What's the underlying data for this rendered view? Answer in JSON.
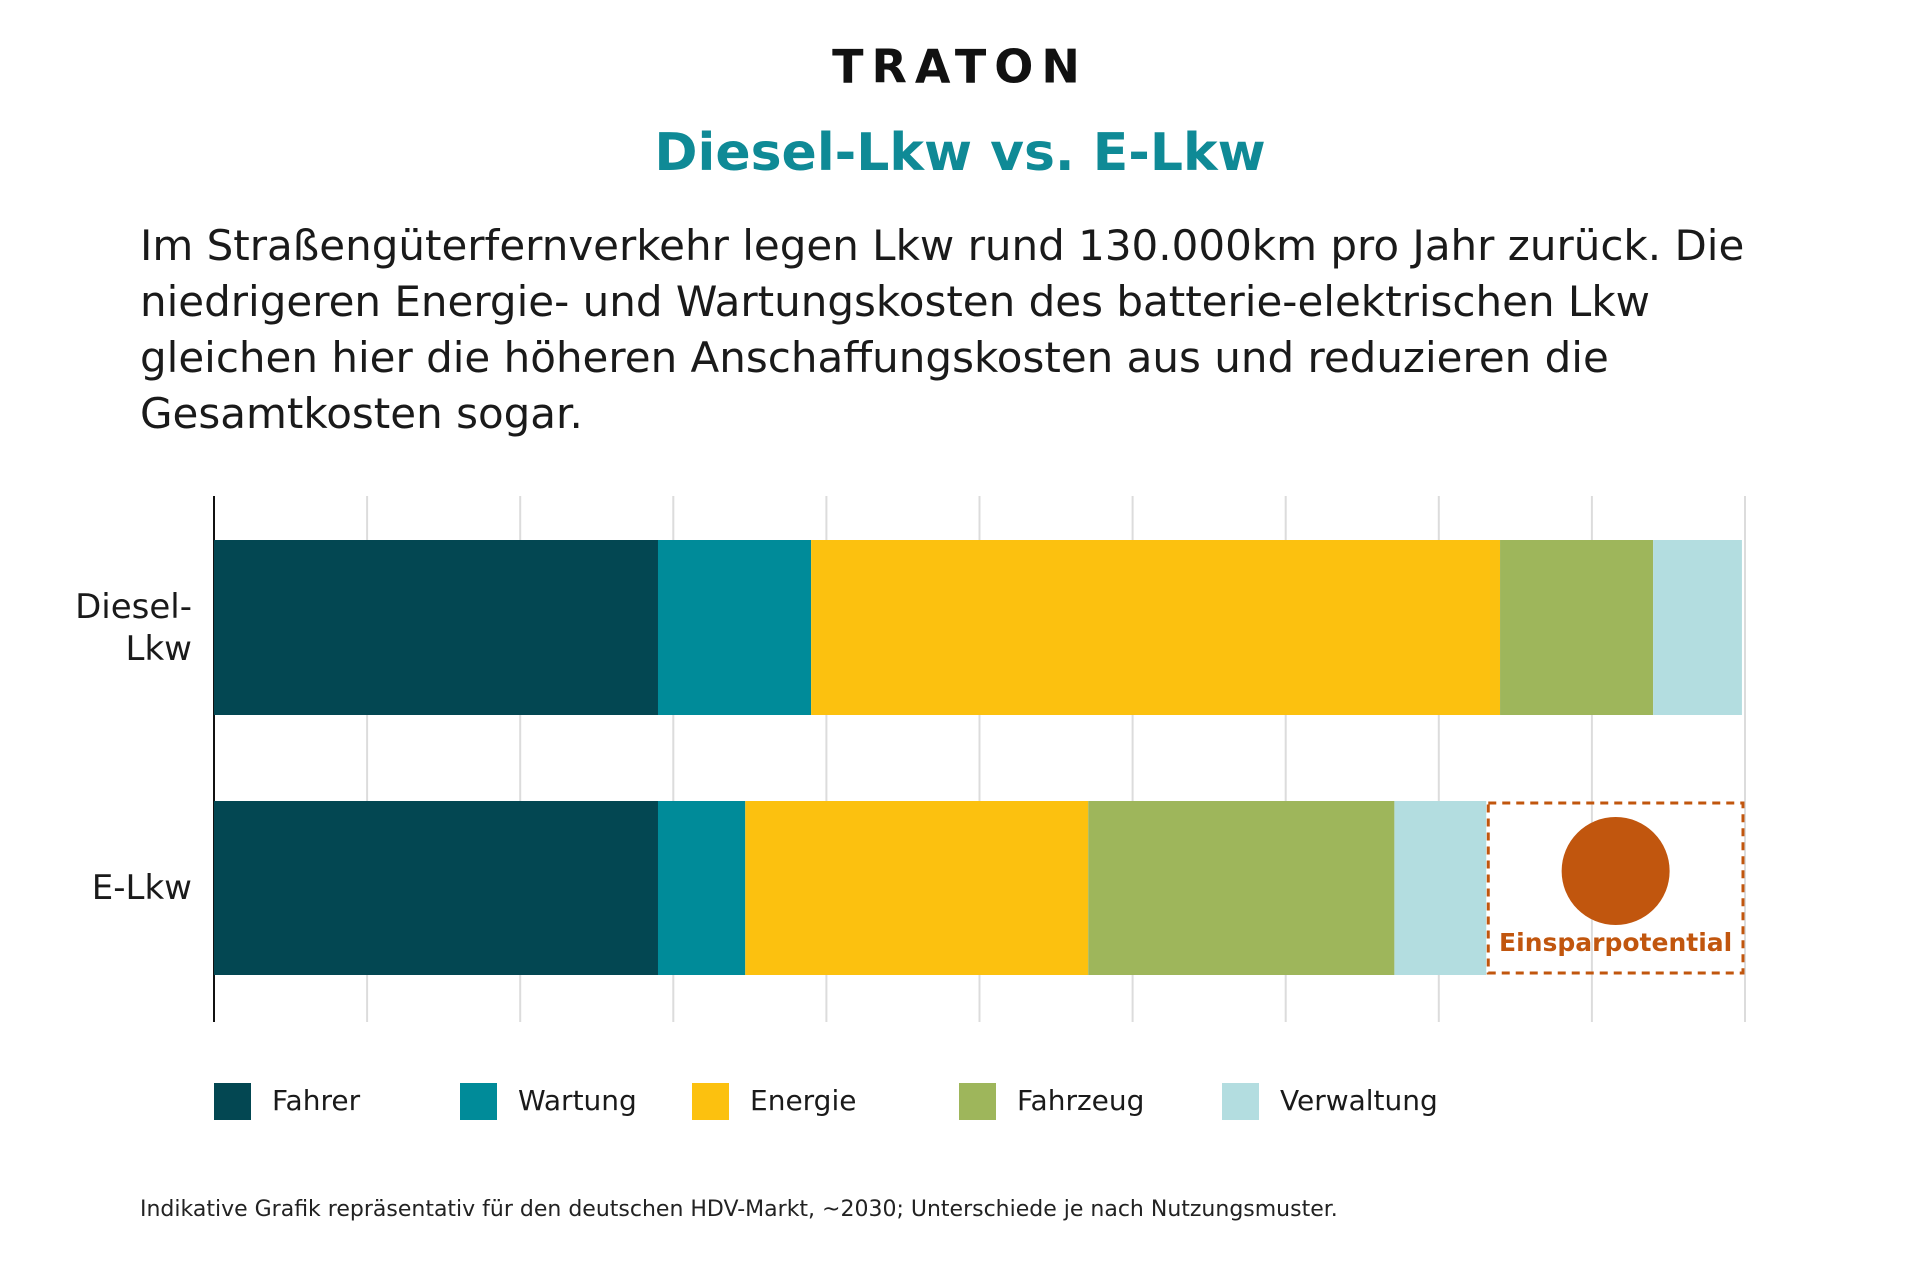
{
  "logo": "TRATON",
  "chart_data": {
    "type": "stacked-bar-horizontal",
    "title": "Diesel-Lkw vs. E-Lkw",
    "subtitle": "Im Straßengüterfernverkehr legen Lkw rund 130.000km pro Jahr zurück. Die niedrigeren Energie- und Wartungskosten des batterie-elektrischen Lkw gleichen hier die höheren Anschaffungskosten aus und reduzieren die Gesamtkosten sogar.",
    "categories": [
      "Diesel-Lkw",
      "E-Lkw"
    ],
    "series": [
      {
        "name": "Fahrer",
        "color": "#034752",
        "values": [
          2.9,
          2.9
        ]
      },
      {
        "name": "Wartung",
        "color": "#008b99",
        "values": [
          1.0,
          0.57
        ]
      },
      {
        "name": "Energie",
        "color": "#fcc10f",
        "values": [
          4.5,
          2.24
        ]
      },
      {
        "name": "Fahrzeug",
        "color": "#9eb65b",
        "values": [
          1.0,
          2.0
        ]
      },
      {
        "name": "Verwaltung",
        "color": "#b3dde0",
        "values": [
          0.58,
          0.6
        ]
      }
    ],
    "xlim": [
      0,
      10
    ],
    "xticks": [
      0,
      1,
      2,
      3,
      4,
      5,
      6,
      7,
      8,
      9,
      10
    ],
    "grid": true,
    "annotation": {
      "text": "Einsparpotential",
      "color": "#c1560e"
    },
    "footnote": "Indikative Grafik repräsentativ für den deutschen HDV-Markt, ~2030; Unterschiede je nach Nutzungsmuster."
  }
}
